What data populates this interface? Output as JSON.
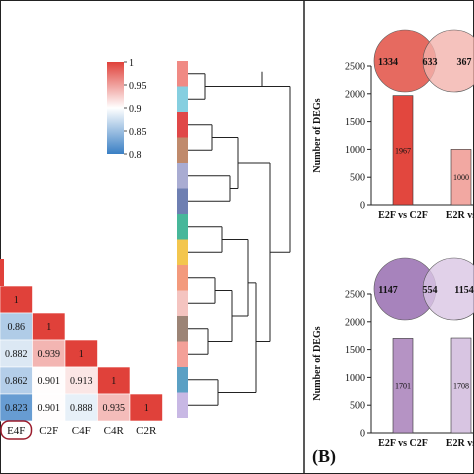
{
  "colors": {
    "heat_low": "#3a7fc4",
    "heat_mid": "#ffffff",
    "heat_high": "#e0413a",
    "bar_red": "#e2473e",
    "bar_pink": "#f2a8a2",
    "bar_purple": "#b593c4",
    "bar_lilac": "#d8c5e2",
    "venn_red": "#e35a4f",
    "venn_pink": "#f3b3ad",
    "venn_purple": "#9d75b5",
    "venn_lilac": "#d9c6e4",
    "highlight_ring": "#9b1c2c"
  },
  "panel_label": "(B)",
  "chart_data": [
    {
      "type": "heatmap",
      "colorbar": {
        "ticks": [
          "1",
          "0.95",
          "0.9",
          "0.85",
          "0.8"
        ],
        "min": 0.8,
        "max": 1
      },
      "column_labels": [
        "E4F",
        "C2F",
        "C4F",
        "C4R",
        "C2R"
      ],
      "highlighted_label": "E4F",
      "cells": [
        {
          "row": 0,
          "col": 0,
          "value": 1,
          "label": "1"
        },
        {
          "row": 1,
          "col": 0,
          "value": 0.86,
          "label": "0.86"
        },
        {
          "row": 1,
          "col": 1,
          "value": 1,
          "label": "1"
        },
        {
          "row": 2,
          "col": 0,
          "value": 0.882,
          "label": "0.882"
        },
        {
          "row": 2,
          "col": 1,
          "value": 0.939,
          "label": "0.939"
        },
        {
          "row": 2,
          "col": 2,
          "value": 1,
          "label": "1"
        },
        {
          "row": 3,
          "col": 0,
          "value": 0.862,
          "label": "0.862"
        },
        {
          "row": 3,
          "col": 1,
          "value": 0.901,
          "label": "0.901"
        },
        {
          "row": 3,
          "col": 2,
          "value": 0.913,
          "label": "0.913"
        },
        {
          "row": 3,
          "col": 3,
          "value": 1,
          "label": "1"
        },
        {
          "row": 4,
          "col": 0,
          "value": 0.823,
          "label": "0.823"
        },
        {
          "row": 4,
          "col": 1,
          "value": 0.901,
          "label": "0.901"
        },
        {
          "row": 4,
          "col": 2,
          "value": 0.888,
          "label": "0.888"
        },
        {
          "row": 4,
          "col": 3,
          "value": 0.935,
          "label": "0.935"
        },
        {
          "row": 4,
          "col": 4,
          "value": 1,
          "label": "1"
        }
      ],
      "sample_colors": [
        "#f08a84",
        "#86cfe0",
        "#e04848",
        "#c08a6c",
        "#a9acd2",
        "#6e7fb2",
        "#47b79a",
        "#f3c64e",
        "#f39a7c",
        "#f4c4c0",
        "#9c8476",
        "#f3a098",
        "#5ba0c4",
        "#c8b8e4"
      ]
    },
    {
      "type": "bar",
      "ylabel": "Number of DEGs",
      "ylim": [
        0,
        2500
      ],
      "yticks": [
        "0",
        "500",
        "1000",
        "1500",
        "2000",
        "2500"
      ],
      "categories": [
        "E2F vs C2F",
        "E2R vs"
      ],
      "values": [
        1967,
        1000
      ],
      "bar_colors": [
        "bar_red",
        "bar_pink"
      ],
      "venn": {
        "left": "1334",
        "overlap": "633",
        "right": "367",
        "left_color": "venn_red",
        "right_color": "venn_pink"
      }
    },
    {
      "type": "bar",
      "ylabel": "Number of DEGs",
      "ylim": [
        0,
        2500
      ],
      "yticks": [
        "0",
        "500",
        "1000",
        "1500",
        "2000",
        "2500"
      ],
      "categories": [
        "E2F vs C2F",
        "E2R vs"
      ],
      "values": [
        1701,
        1708
      ],
      "bar_colors": [
        "bar_purple",
        "bar_lilac"
      ],
      "venn": {
        "left": "1147",
        "overlap": "554",
        "right": "1154",
        "left_color": "venn_purple",
        "right_color": "venn_lilac"
      }
    }
  ]
}
